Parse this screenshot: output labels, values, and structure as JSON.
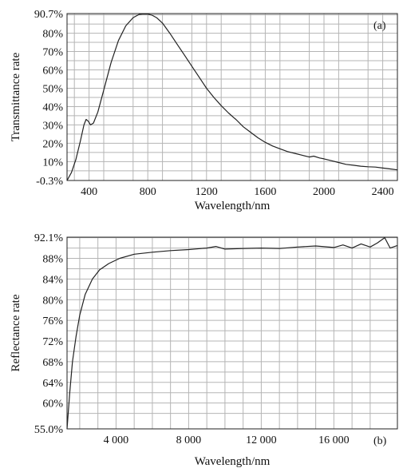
{
  "chart_data": [
    {
      "type": "line",
      "panel_label": "(a)",
      "xlabel": "Wavelength/nm",
      "ylabel": "Transmittance rate",
      "xlim": [
        250,
        2500
      ],
      "ylim": [
        -0.3,
        90.7
      ],
      "x_ticks": [
        "400",
        "800",
        "1200",
        "1600",
        "2000",
        "2400"
      ],
      "x_tick_values": [
        400,
        800,
        1200,
        1600,
        2000,
        2400
      ],
      "y_ticks": [
        "-0.3%",
        "10%",
        "20%",
        "30%",
        "40%",
        "50%",
        "60%",
        "70%",
        "80%",
        "90.7%"
      ],
      "y_tick_values": [
        -0.3,
        10,
        20,
        30,
        40,
        50,
        60,
        70,
        80,
        90.7
      ],
      "grid": true,
      "series": [
        {
          "x": [
            250,
            280,
            310,
            340,
            365,
            380,
            395,
            410,
            430,
            460,
            500,
            550,
            600,
            650,
            700,
            740,
            770,
            800,
            830,
            860,
            900,
            950,
            1000,
            1050,
            1100,
            1150,
            1200,
            1250,
            1300,
            1350,
            1385,
            1400,
            1450,
            1500,
            1550,
            1600,
            1650,
            1700,
            1750,
            1800,
            1850,
            1900,
            1930,
            1970,
            2000,
            2050,
            2100,
            2150,
            2200,
            2250,
            2300,
            2350,
            2400,
            2450,
            2500
          ],
          "y": [
            -0.3,
            4,
            11,
            21,
            30,
            33,
            32,
            30,
            31,
            37,
            49,
            64,
            76,
            84,
            88.5,
            90.2,
            90.5,
            90.4,
            89.8,
            88.5,
            85.5,
            80,
            74,
            68,
            62,
            56,
            50,
            45,
            40.5,
            36.5,
            34,
            33,
            29,
            26,
            23,
            20.5,
            18.5,
            17,
            15.5,
            14.5,
            13.5,
            12.5,
            13,
            12,
            11.5,
            10.5,
            9.5,
            8.5,
            8,
            7.5,
            7.2,
            7,
            6.5,
            6,
            5.5
          ]
        }
      ]
    },
    {
      "type": "line",
      "panel_label": "(b)",
      "xlabel": "Wavelength/nm",
      "ylabel": "Reflectance rate",
      "xlim": [
        1300,
        19500
      ],
      "ylim": [
        55.0,
        92.1
      ],
      "x_ticks": [
        "4 000",
        "8 000",
        "12 000",
        "16 000"
      ],
      "x_tick_values": [
        4000,
        8000,
        12000,
        16000
      ],
      "y_ticks": [
        "55.0%",
        "60%",
        "64%",
        "68%",
        "72%",
        "76%",
        "80%",
        "84%",
        "88%",
        "92.1%"
      ],
      "y_tick_values": [
        55.0,
        60,
        64,
        68,
        72,
        76,
        80,
        84,
        88,
        92.1
      ],
      "grid": true,
      "series": [
        {
          "x": [
            1300,
            1450,
            1600,
            1800,
            2000,
            2300,
            2700,
            3100,
            3600,
            4200,
            5000,
            6000,
            7000,
            8000,
            9000,
            9500,
            10000,
            11000,
            12000,
            13000,
            14000,
            15000,
            16000,
            16500,
            17000,
            17500,
            18000,
            18400,
            18800,
            19100,
            19500
          ],
          "y": [
            55.0,
            62,
            68,
            73,
            77,
            81,
            84,
            85.8,
            87,
            88,
            88.8,
            89.2,
            89.5,
            89.7,
            90.0,
            90.3,
            89.8,
            89.9,
            90.0,
            89.9,
            90.2,
            90.4,
            90.1,
            90.6,
            90.0,
            90.8,
            90.2,
            91.0,
            92.0,
            90.0,
            90.5
          ]
        }
      ]
    }
  ]
}
